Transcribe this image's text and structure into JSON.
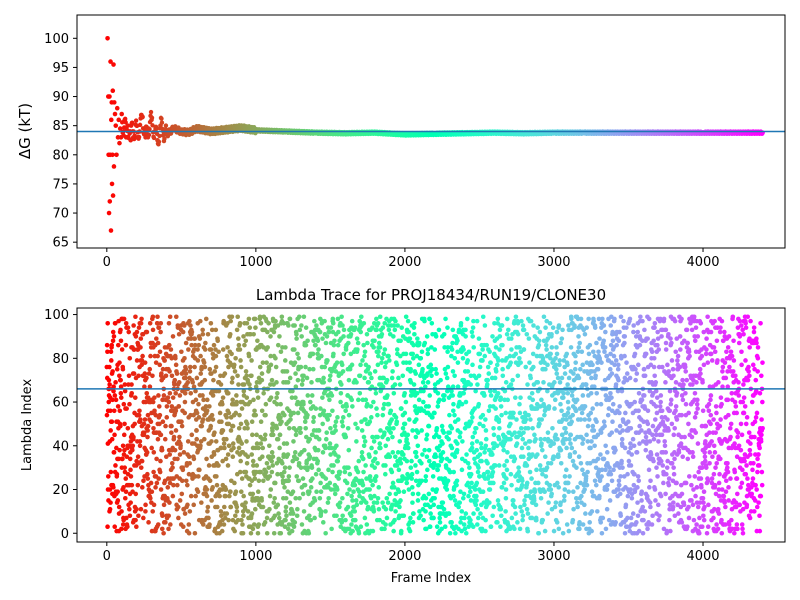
{
  "colors": {
    "hline": "#1f77b4",
    "colormap": "rainbow",
    "axes_frame": "#000000",
    "background": "#ffffff"
  },
  "chart_data": [
    {
      "type": "scatter",
      "title": "",
      "xlabel": "",
      "ylabel": "ΔG (kT)",
      "xlim": [
        -200,
        4550
      ],
      "ylim": [
        64,
        104
      ],
      "xticks": [
        0,
        1000,
        2000,
        3000,
        4000
      ],
      "yticks": [
        65,
        70,
        75,
        80,
        85,
        90,
        95,
        100
      ],
      "grid": false,
      "legend": "none",
      "marker_color": "rainbow colormap, red at first frame to violet at last frame",
      "hline": {
        "y": 84,
        "color": "#1f77b4"
      },
      "series": [
        {
          "x": [
            5,
            10,
            12,
            15,
            18,
            20,
            22,
            25,
            28,
            30,
            33,
            35,
            38,
            40,
            42,
            45,
            48,
            50,
            55,
            60,
            65,
            70,
            75,
            80,
            85,
            90,
            95,
            100,
            110,
            120,
            130,
            140,
            150,
            160,
            170,
            180,
            190,
            200,
            220,
            240,
            260,
            280,
            300,
            320,
            340,
            360,
            380,
            400,
            450,
            500,
            550,
            600,
            700,
            800,
            900,
            1000,
            1200,
            1400,
            1600,
            1800,
            2000,
            2200,
            2400,
            2600,
            2800,
            3000,
            3200,
            3400,
            3600,
            3800,
            4000,
            4200,
            4400
          ],
          "y": [
            100,
            90,
            80,
            70,
            90,
            72,
            80,
            96,
            67,
            86,
            89,
            75,
            80,
            91,
            73,
            95.5,
            78,
            89,
            87,
            85,
            80,
            88,
            83,
            86,
            82,
            84.5,
            83,
            87,
            84,
            86,
            83,
            85,
            84,
            82.5,
            85.5,
            84,
            83,
            85,
            84,
            86.5,
            83,
            84.5,
            86,
            84,
            82.5,
            85,
            84,
            83.5,
            84.5,
            84,
            83.8,
            84.5,
            84,
            84.3,
            84.6,
            84.2,
            84,
            83.8,
            83.7,
            83.8,
            83.5,
            83.6,
            83.7,
            83.8,
            83.7,
            83.8,
            83.8,
            83.8,
            83.8,
            83.8,
            83.8,
            83.8,
            83.8
          ]
        }
      ]
    },
    {
      "type": "scatter",
      "title": "Lambda Trace for PROJ18434/RUN19/CLONE30",
      "xlabel": "Frame Index",
      "ylabel": "Lambda Index",
      "xlim": [
        -200,
        4550
      ],
      "ylim": [
        -4,
        103
      ],
      "xticks": [
        0,
        1000,
        2000,
        3000,
        4000
      ],
      "yticks": [
        0,
        20,
        40,
        60,
        80,
        100
      ],
      "grid": false,
      "legend": "none",
      "marker_color": "rainbow colormap, red at first frame to violet at last frame",
      "hline": {
        "y": 66,
        "color": "#1f77b4"
      },
      "x_range": [
        0,
        4400
      ],
      "y_range": [
        0,
        99
      ],
      "point_count": 4400,
      "note": "dense uniform scatter of lambda indices 0-99 across all frames"
    }
  ]
}
